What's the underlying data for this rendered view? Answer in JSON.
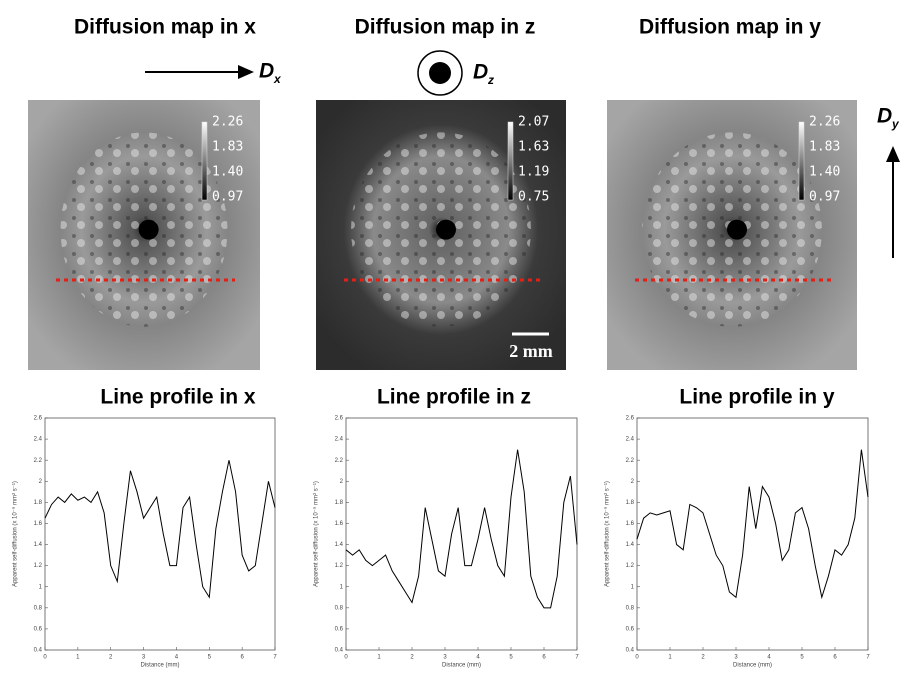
{
  "maps": [
    {
      "title": "Diffusion map in x",
      "axis_symbol": "D",
      "axis_subscript": "x",
      "colorbar_labels": [
        "2.26",
        "1.83",
        "1.40",
        "0.97"
      ]
    },
    {
      "title": "Diffusion map in z",
      "axis_symbol": "D",
      "axis_subscript": "z",
      "colorbar_labels": [
        "2.07",
        "1.63",
        "1.19",
        "0.75"
      ],
      "scale_bar": "2 mm"
    },
    {
      "title": "Diffusion map in y",
      "axis_symbol": "D",
      "axis_subscript": "y",
      "colorbar_labels": [
        "2.26",
        "1.83",
        "1.40",
        "0.97"
      ]
    }
  ],
  "chart_data": [
    {
      "type": "line",
      "title": "Line profile in x",
      "x_label": "Distance (mm)",
      "y_label": "Apparent self-diffusion (x 10⁻⁹ mm² s⁻¹)",
      "x": [
        0,
        0.2,
        0.4,
        0.6,
        0.8,
        1,
        1.2,
        1.4,
        1.6,
        1.8,
        2,
        2.2,
        2.4,
        2.6,
        2.8,
        3,
        3.2,
        3.4,
        3.6,
        3.8,
        4,
        4.2,
        4.4,
        4.6,
        4.8,
        5,
        5.2,
        5.4,
        5.6,
        5.8,
        6,
        6.2,
        6.4,
        6.6,
        6.8,
        7
      ],
      "series": [
        {
          "color": "#000000",
          "values": [
            1.65,
            1.78,
            1.85,
            1.8,
            1.88,
            1.82,
            1.85,
            1.8,
            1.9,
            1.7,
            1.2,
            1.05,
            1.6,
            2.1,
            1.9,
            1.65,
            1.75,
            1.85,
            1.5,
            1.2,
            1.2,
            1.75,
            1.85,
            1.4,
            1.0,
            0.9,
            1.55,
            1.9,
            2.2,
            1.9,
            1.3,
            1.15,
            1.2,
            1.6,
            2.0,
            1.75
          ]
        }
      ],
      "xlim": [
        0,
        7
      ],
      "xticks": [
        0,
        1,
        2,
        3,
        4,
        5,
        6,
        7
      ],
      "ylim": [
        0.4,
        2.6
      ],
      "yticks": [
        0.4,
        0.6,
        0.8,
        1,
        1.2,
        1.4,
        1.6,
        1.8,
        2,
        2.2,
        2.4,
        2.6
      ]
    },
    {
      "type": "line",
      "title": "Line profile in z",
      "x_label": "Distance (mm)",
      "y_label": "Apparent self-diffusion (x 10⁻⁹ mm² s⁻¹)",
      "x": [
        0,
        0.2,
        0.4,
        0.6,
        0.8,
        1,
        1.2,
        1.4,
        1.6,
        1.8,
        2,
        2.2,
        2.4,
        2.6,
        2.8,
        3,
        3.2,
        3.4,
        3.6,
        3.8,
        4,
        4.2,
        4.4,
        4.6,
        4.8,
        5,
        5.2,
        5.4,
        5.6,
        5.8,
        6,
        6.2,
        6.4,
        6.6,
        6.8,
        7
      ],
      "series": [
        {
          "color": "#000000",
          "values": [
            1.35,
            1.3,
            1.35,
            1.25,
            1.2,
            1.25,
            1.3,
            1.15,
            1.05,
            0.95,
            0.85,
            1.1,
            1.75,
            1.45,
            1.15,
            1.1,
            1.5,
            1.75,
            1.2,
            1.2,
            1.45,
            1.75,
            1.45,
            1.2,
            1.1,
            1.85,
            2.3,
            1.9,
            1.1,
            0.9,
            0.8,
            0.8,
            1.1,
            1.8,
            2.05,
            1.4
          ]
        }
      ],
      "xlim": [
        0,
        7
      ],
      "xticks": [
        0,
        1,
        2,
        3,
        4,
        5,
        6,
        7
      ],
      "ylim": [
        0.4,
        2.6
      ],
      "yticks": [
        0.4,
        0.6,
        0.8,
        1,
        1.2,
        1.4,
        1.6,
        1.8,
        2,
        2.2,
        2.4,
        2.6
      ]
    },
    {
      "type": "line",
      "title": "Line profile in y",
      "x_label": "Distance (mm)",
      "y_label": "Apparent self-diffusion (x 10⁻⁹ mm² s⁻¹)",
      "x": [
        0,
        0.2,
        0.4,
        0.6,
        0.8,
        1,
        1.2,
        1.4,
        1.6,
        1.8,
        2,
        2.2,
        2.4,
        2.6,
        2.8,
        3,
        3.2,
        3.4,
        3.6,
        3.8,
        4,
        4.2,
        4.4,
        4.6,
        4.8,
        5,
        5.2,
        5.4,
        5.6,
        5.8,
        6,
        6.2,
        6.4,
        6.6,
        6.8,
        7
      ],
      "series": [
        {
          "color": "#000000",
          "values": [
            1.45,
            1.65,
            1.7,
            1.68,
            1.7,
            1.72,
            1.4,
            1.35,
            1.78,
            1.75,
            1.7,
            1.5,
            1.3,
            1.2,
            0.95,
            0.9,
            1.3,
            1.95,
            1.55,
            1.95,
            1.85,
            1.6,
            1.25,
            1.35,
            1.7,
            1.75,
            1.55,
            1.2,
            0.9,
            1.1,
            1.35,
            1.3,
            1.4,
            1.65,
            2.3,
            1.85
          ]
        }
      ],
      "xlim": [
        0,
        7
      ],
      "xticks": [
        0,
        1,
        2,
        3,
        4,
        5,
        6,
        7
      ],
      "ylim": [
        0.4,
        2.6
      ],
      "yticks": [
        0.4,
        0.6,
        0.8,
        1,
        1.2,
        1.4,
        1.6,
        1.8,
        2,
        2.2,
        2.4,
        2.6
      ]
    }
  ]
}
